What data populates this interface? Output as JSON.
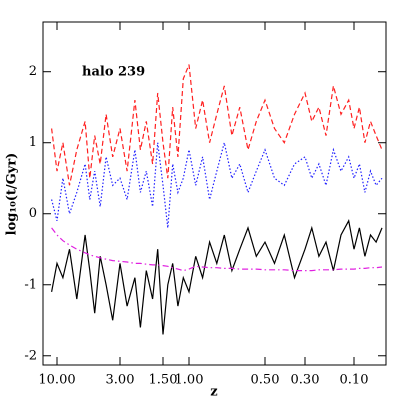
{
  "chart_data": {
    "type": "line",
    "annotation": "halo 239",
    "xlabel": "z",
    "ylabel": "log₁₀(t/Gyr)",
    "x": [
      11,
      10,
      9,
      8,
      7,
      6,
      5.5,
      5,
      4.5,
      4,
      3.5,
      3,
      2.7,
      2.4,
      2.2,
      2,
      1.8,
      1.65,
      1.5,
      1.4,
      1.3,
      1.2,
      1.1,
      1.0,
      0.95,
      0.9,
      0.85,
      0.8,
      0.75,
      0.7,
      0.65,
      0.6,
      0.55,
      0.5,
      0.45,
      0.4,
      0.35,
      0.3,
      0.27,
      0.24,
      0.21,
      0.18,
      0.15,
      0.12,
      0.1,
      0.08,
      0.06,
      0.04,
      0.02,
      0
    ],
    "series": [
      {
        "color": "#ff2020",
        "style": "dashed",
        "values": [
          1.2,
          0.6,
          1.0,
          0.4,
          0.9,
          1.3,
          0.5,
          1.1,
          0.7,
          1.4,
          0.8,
          1.2,
          0.6,
          1.6,
          0.9,
          1.3,
          0.7,
          1.7,
          1.0,
          0.5,
          1.5,
          0.8,
          1.9,
          2.1,
          1.2,
          1.6,
          1.0,
          1.4,
          1.8,
          1.1,
          1.5,
          0.9,
          1.3,
          1.6,
          1.2,
          1.0,
          1.4,
          1.7,
          1.3,
          1.5,
          1.1,
          1.8,
          1.4,
          1.6,
          1.2,
          1.5,
          1.0,
          1.3,
          1.1,
          0.9
        ]
      },
      {
        "color": "#2020ff",
        "style": "dotted",
        "values": [
          0.2,
          -0.1,
          0.5,
          0.0,
          0.3,
          0.7,
          0.2,
          0.6,
          0.1,
          0.8,
          0.4,
          0.5,
          0.2,
          0.9,
          0.3,
          0.6,
          0.1,
          1.0,
          0.4,
          -0.2,
          0.7,
          0.3,
          0.5,
          0.9,
          0.4,
          0.8,
          0.2,
          0.6,
          1.0,
          0.5,
          0.7,
          0.3,
          0.6,
          0.9,
          0.5,
          0.4,
          0.7,
          0.8,
          0.5,
          0.7,
          0.4,
          0.9,
          0.6,
          0.8,
          0.5,
          0.7,
          0.3,
          0.6,
          0.4,
          0.5
        ]
      },
      {
        "color": "#000000",
        "style": "solid",
        "values": [
          -1.1,
          -0.7,
          -0.9,
          -0.5,
          -1.2,
          -0.3,
          -0.8,
          -1.4,
          -0.6,
          -1.0,
          -1.5,
          -0.7,
          -1.3,
          -0.9,
          -1.6,
          -0.8,
          -1.2,
          -0.5,
          -1.7,
          -1.0,
          -0.7,
          -1.3,
          -0.9,
          -1.1,
          -0.6,
          -0.9,
          -0.4,
          -0.7,
          -0.3,
          -0.8,
          -0.5,
          -0.2,
          -0.6,
          -0.4,
          -0.7,
          -0.3,
          -0.9,
          -0.5,
          -0.2,
          -0.6,
          -0.4,
          -0.8,
          -0.3,
          -0.1,
          -0.5,
          -0.2,
          -0.6,
          -0.3,
          -0.4,
          -0.2
        ]
      },
      {
        "color": "#e020e0",
        "style": "dashdot",
        "values": [
          -0.2,
          -0.3,
          -0.38,
          -0.44,
          -0.5,
          -0.55,
          -0.58,
          -0.6,
          -0.62,
          -0.64,
          -0.66,
          -0.67,
          -0.68,
          -0.7,
          -0.7,
          -0.71,
          -0.72,
          -0.72,
          -0.73,
          -0.74,
          -0.76,
          -0.78,
          -0.8,
          -0.78,
          -0.74,
          -0.75,
          -0.76,
          -0.76,
          -0.77,
          -0.77,
          -0.78,
          -0.78,
          -0.78,
          -0.79,
          -0.79,
          -0.79,
          -0.8,
          -0.8,
          -0.8,
          -0.79,
          -0.79,
          -0.79,
          -0.78,
          -0.78,
          -0.78,
          -0.77,
          -0.77,
          -0.76,
          -0.76,
          -0.75
        ]
      }
    ],
    "xlim": [
      12,
      0
    ],
    "xticks": [
      {
        "value": 10,
        "label": "10.00"
      },
      {
        "value": 3,
        "label": "3.00"
      },
      {
        "value": 1.5,
        "label": "1.50"
      },
      {
        "value": 1,
        "label": "1.00"
      },
      {
        "value": 0.5,
        "label": "0.50"
      },
      {
        "value": 0.3,
        "label": "0.30"
      },
      {
        "value": 0.1,
        "label": "0.10"
      }
    ],
    "ylim": [
      -2.13,
      2.7
    ],
    "yticks": [
      -2,
      -1,
      0,
      1,
      2
    ]
  }
}
